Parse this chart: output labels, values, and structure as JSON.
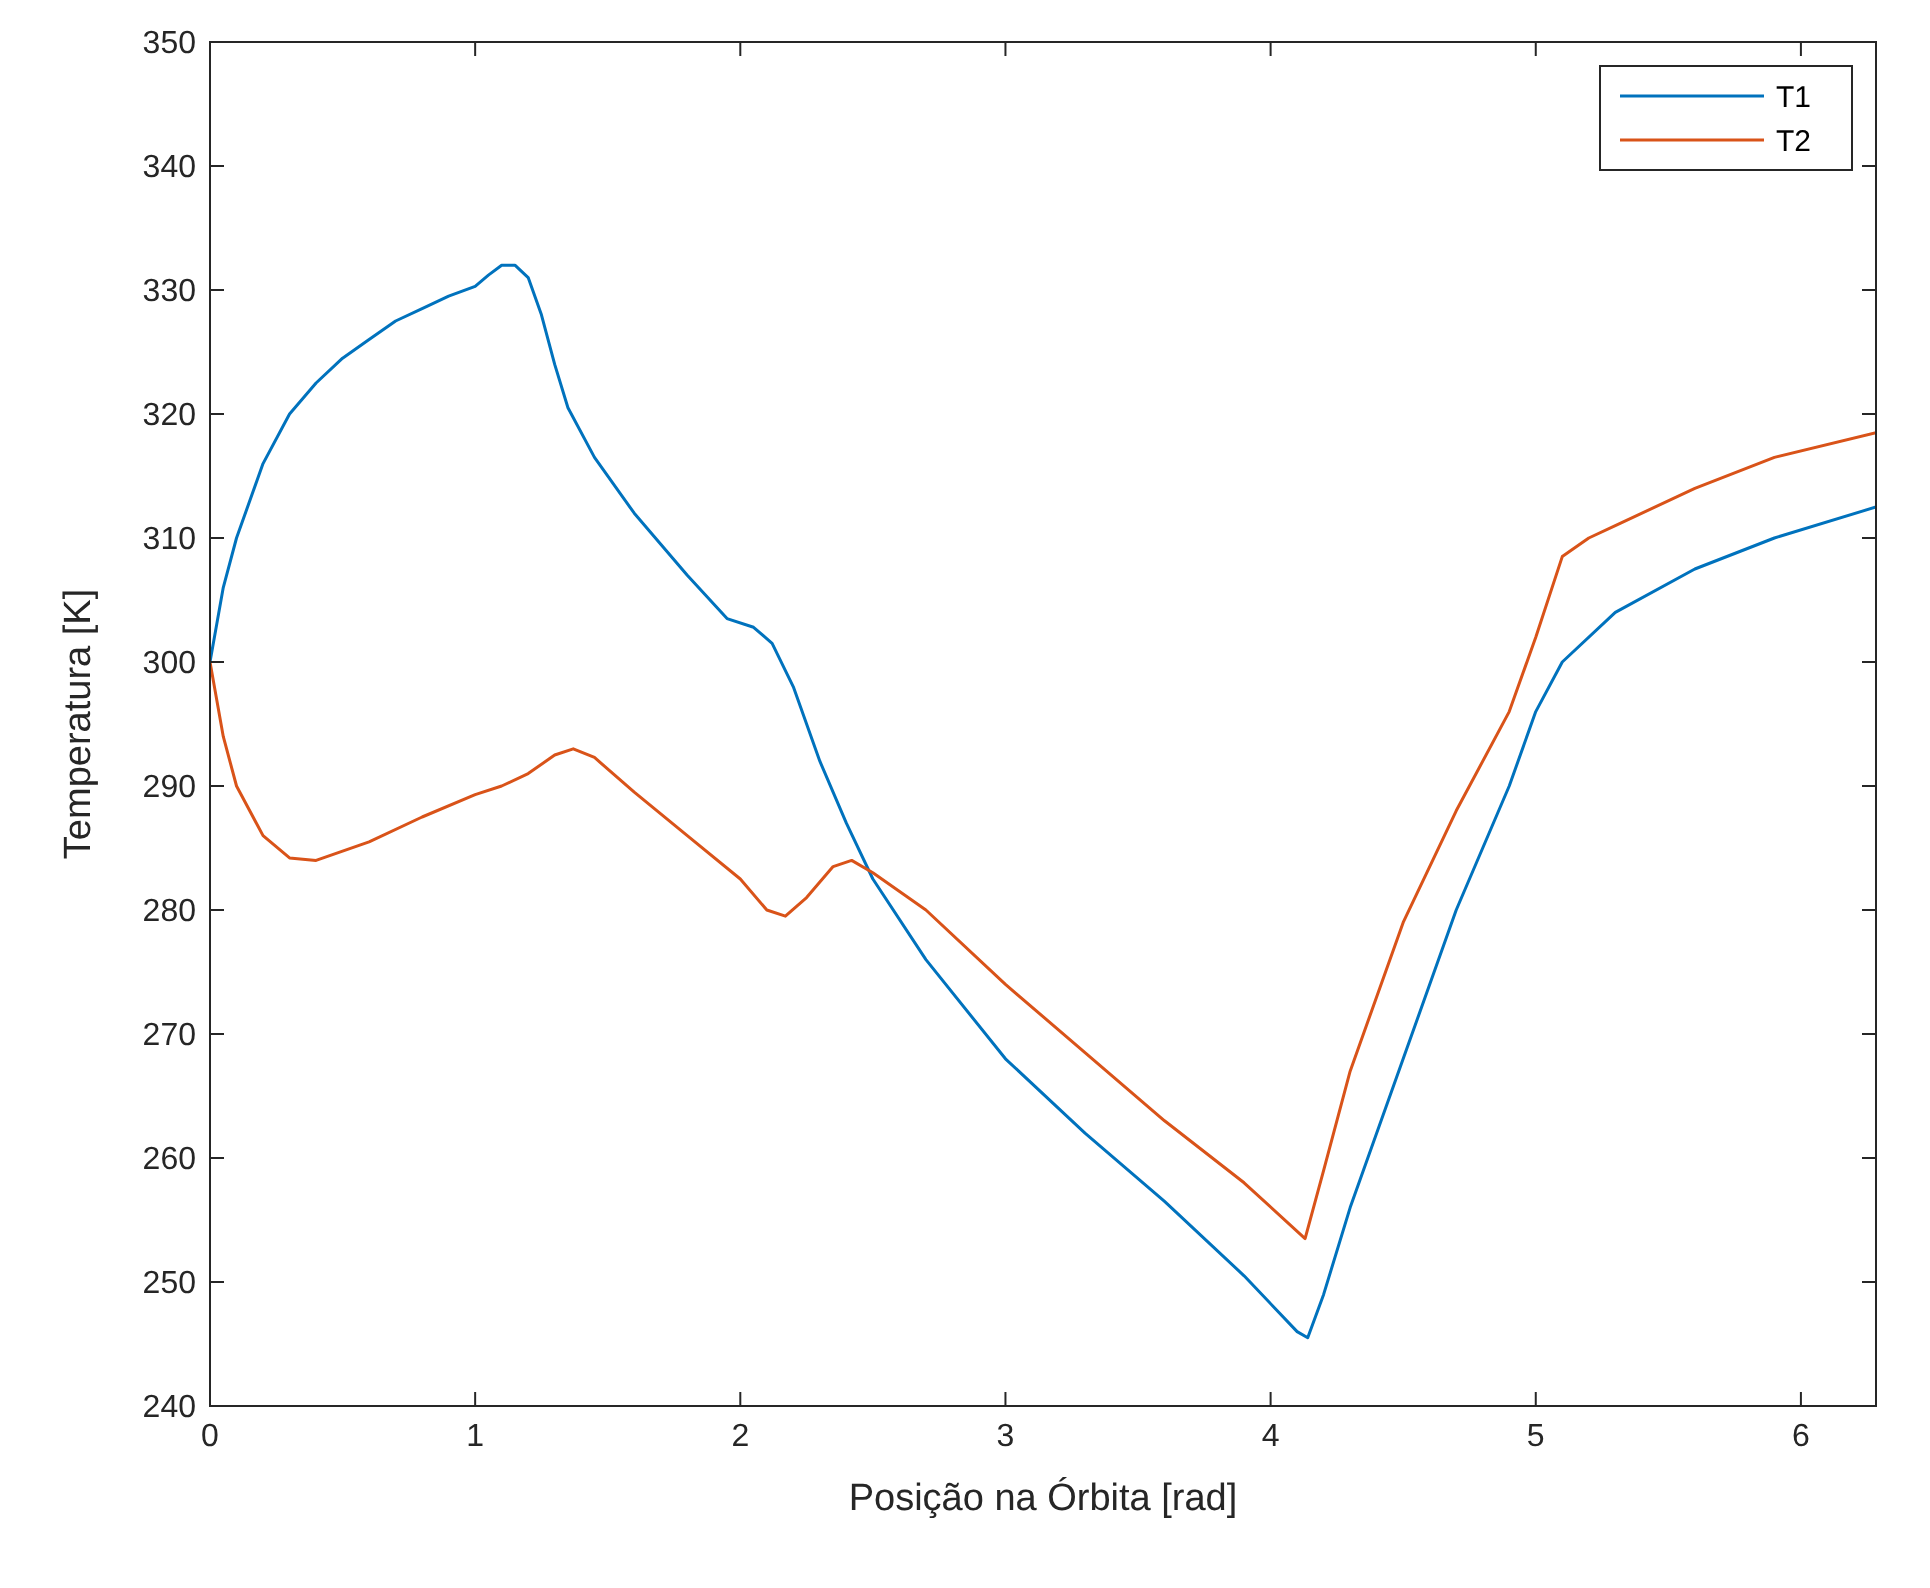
{
  "chart_data": {
    "type": "line",
    "xlabel": "Posição na Órbita [rad]",
    "ylabel": "Temperatura [K]",
    "xlim": [
      0,
      6.2832
    ],
    "xticks": [
      0,
      1,
      2,
      3,
      4,
      5,
      6
    ],
    "ylim": [
      240,
      350
    ],
    "yticks": [
      240,
      250,
      260,
      270,
      280,
      290,
      300,
      310,
      320,
      330,
      340,
      350
    ],
    "grid": false,
    "legend": "top right",
    "line_style": "solid",
    "marker": "none",
    "series": [
      {
        "name": "T1",
        "color": "#0072bd",
        "x": [
          0,
          0.05,
          0.1,
          0.2,
          0.3,
          0.4,
          0.5,
          0.6,
          0.7,
          0.8,
          0.9,
          1.0,
          1.05,
          1.1,
          1.15,
          1.2,
          1.25,
          1.3,
          1.35,
          1.45,
          1.6,
          1.8,
          1.95,
          2.05,
          2.12,
          2.2,
          2.3,
          2.4,
          2.5,
          2.7,
          3.0,
          3.3,
          3.6,
          3.9,
          4.1,
          4.14,
          4.2,
          4.3,
          4.5,
          4.7,
          4.9,
          5.0,
          5.1,
          5.3,
          5.6,
          5.9,
          6.2832
        ],
        "values": [
          300,
          306,
          310,
          316,
          320,
          322.5,
          324.5,
          326,
          327.5,
          328.5,
          329.5,
          330.3,
          331.2,
          332,
          332,
          331,
          328,
          324,
          320.5,
          316.5,
          312,
          307,
          303.5,
          302.8,
          301.5,
          298,
          292,
          287,
          282.5,
          276,
          268,
          262,
          256.5,
          250.5,
          246,
          245.5,
          249,
          256,
          268,
          280,
          290,
          296,
          300,
          304,
          307.5,
          310,
          312.5
        ]
      },
      {
        "name": "T2",
        "color": "#d95319",
        "x": [
          0,
          0.05,
          0.1,
          0.2,
          0.3,
          0.4,
          0.6,
          0.8,
          1.0,
          1.1,
          1.2,
          1.3,
          1.37,
          1.45,
          1.6,
          1.8,
          2.0,
          2.1,
          2.17,
          2.25,
          2.35,
          2.42,
          2.5,
          2.7,
          3.0,
          3.3,
          3.6,
          3.9,
          4.13,
          4.2,
          4.3,
          4.5,
          4.7,
          4.9,
          5.0,
          5.1,
          5.2,
          5.3,
          5.6,
          5.9,
          6.2832
        ],
        "values": [
          300,
          294,
          290,
          286,
          284.2,
          284,
          285.5,
          287.5,
          289.3,
          290,
          291,
          292.5,
          293,
          292.3,
          289.5,
          286,
          282.5,
          280,
          279.5,
          281,
          283.5,
          284,
          283,
          280,
          274,
          268.5,
          263,
          258,
          253.5,
          259,
          267,
          279,
          288,
          296,
          302,
          308.5,
          310,
          311,
          314,
          316.5,
          318.5
        ]
      }
    ]
  }
}
